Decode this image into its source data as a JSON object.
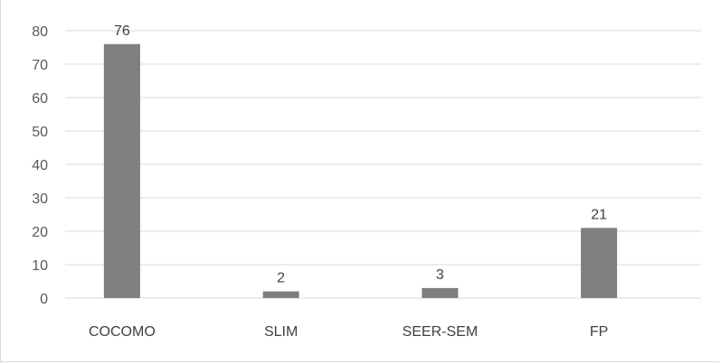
{
  "chart_data": {
    "type": "bar",
    "categories": [
      "COCOMO",
      "SLIM",
      "SEER-SEM",
      "FP"
    ],
    "values": [
      76,
      2,
      3,
      21
    ],
    "data_labels": [
      "76",
      "2",
      "3",
      "21"
    ],
    "title": "",
    "xlabel": "",
    "ylabel": "",
    "ylim": [
      0,
      80
    ],
    "yticks": [
      0,
      10,
      20,
      30,
      40,
      50,
      60,
      70,
      80
    ],
    "grid": true,
    "legend": "none",
    "bar_color": "#7f7f7f",
    "grid_color": "#d9d9d9"
  }
}
